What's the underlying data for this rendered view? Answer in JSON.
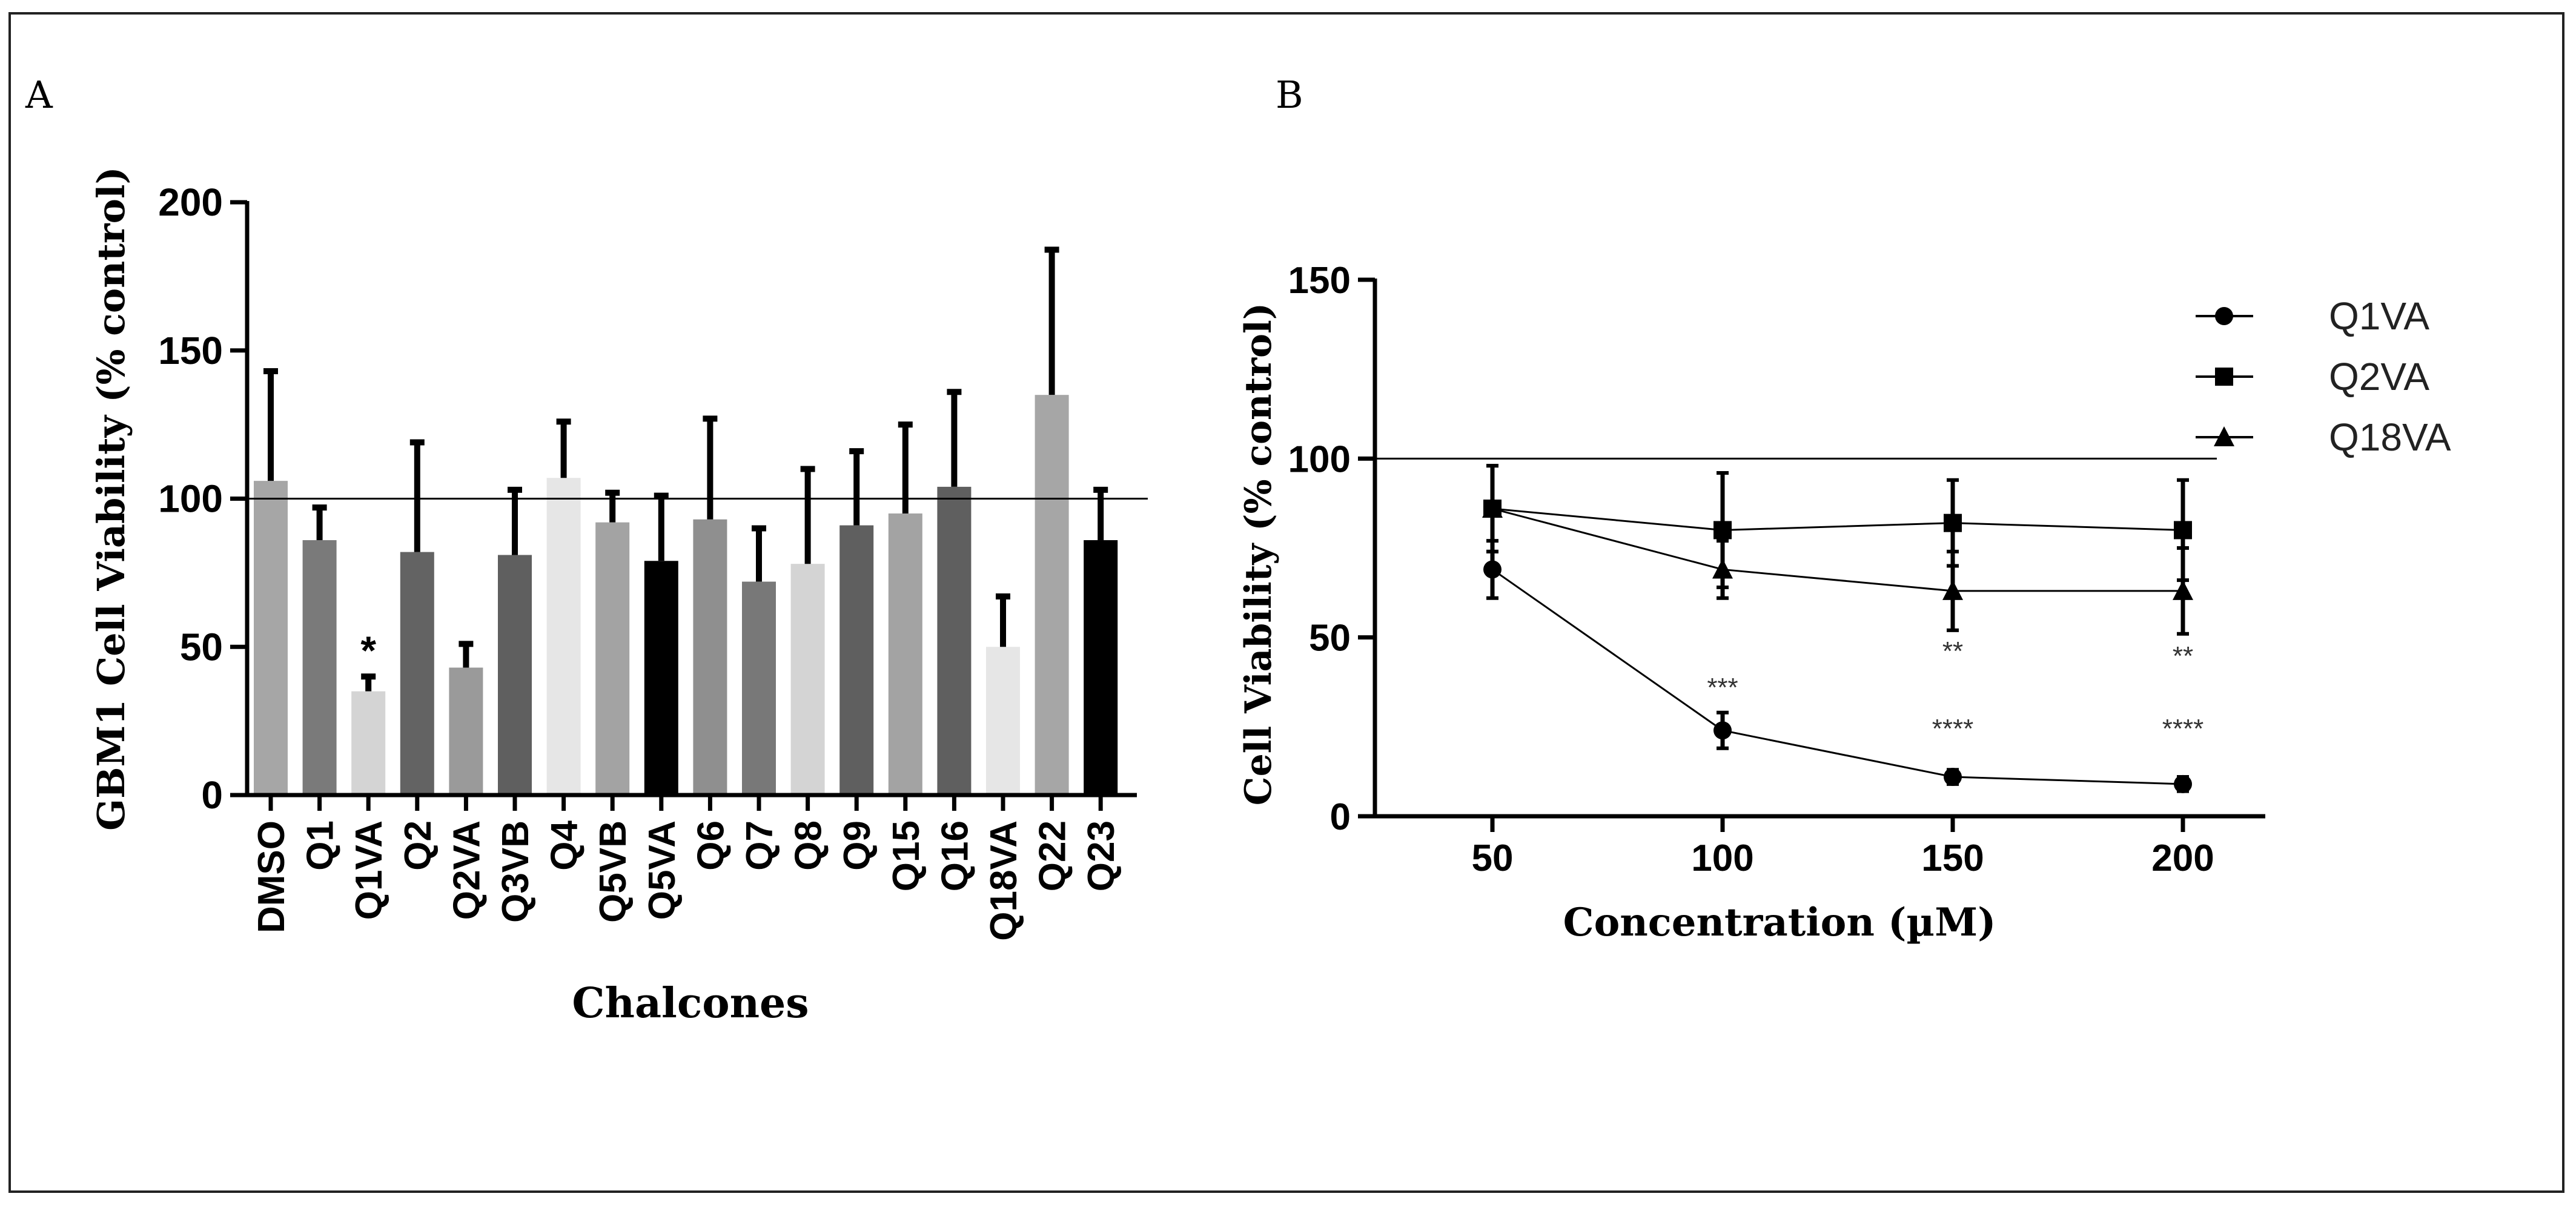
{
  "panels": {
    "a_label": "A",
    "b_label": "B"
  },
  "colors": {
    "axis": "#000000",
    "error_bar": "#000000",
    "reference_line": "#000000"
  },
  "chart_data": [
    {
      "type": "bar",
      "panel": "A",
      "title": "",
      "xlabel": "Chalcones",
      "ylabel": "GBM1 Cell Viability (% control)",
      "ylim": [
        0,
        200
      ],
      "yticks": [
        0,
        50,
        100,
        150,
        200
      ],
      "reference_line": 100,
      "categories": [
        "DMSO",
        "Q1",
        "Q1VA",
        "Q2",
        "Q2VA",
        "Q3VB",
        "Q4",
        "Q5VB",
        "Q5VA",
        "Q6",
        "Q7",
        "Q8",
        "Q9",
        "Q15",
        "Q16",
        "Q18VA",
        "Q22",
        "Q23"
      ],
      "values": [
        106,
        86,
        35,
        82,
        43,
        81,
        107,
        92,
        79,
        93,
        72,
        78,
        91,
        95,
        104,
        50,
        135,
        86
      ],
      "errors": [
        37,
        11,
        5,
        37,
        8,
        22,
        19,
        10,
        22,
        34,
        18,
        32,
        25,
        30,
        32,
        17,
        49,
        17
      ],
      "bar_colors": [
        "#a6a6a6",
        "#7a7a7a",
        "#d4d4d4",
        "#636363",
        "#9a9a9a",
        "#5f5f5f",
        "#e6e6e6",
        "#a3a3a3",
        "#000000",
        "#8f8f8f",
        "#787878",
        "#d4d4d4",
        "#5f5f5f",
        "#a3a3a3",
        "#5f5f5f",
        "#e6e6e6",
        "#a6a6a6",
        "#000000"
      ],
      "annotations": [
        {
          "category": "Q1VA",
          "text": "*"
        }
      ]
    },
    {
      "type": "line",
      "panel": "B",
      "title": "",
      "xlabel": "Concentration (µM)",
      "ylabel": "Cell Viability (% control)",
      "x": [
        50,
        100,
        150,
        200
      ],
      "xlim": [
        25,
        215
      ],
      "xticks": [
        50,
        100,
        150,
        200
      ],
      "ylim": [
        0,
        150
      ],
      "yticks": [
        0,
        50,
        100,
        150
      ],
      "reference_line": 100,
      "legend_position": "right",
      "series": [
        {
          "name": "Q1VA",
          "marker": "circle",
          "values": [
            69,
            24,
            11,
            9
          ],
          "errors": [
            8,
            5,
            2,
            2
          ],
          "annotations": [
            "",
            "***",
            "****",
            "****"
          ]
        },
        {
          "name": "Q2VA",
          "marker": "square",
          "values": [
            86,
            80,
            82,
            80
          ],
          "errors": [
            12,
            16,
            12,
            14
          ],
          "annotations": [
            "",
            "",
            "",
            ""
          ]
        },
        {
          "name": "Q18VA",
          "marker": "triangle",
          "values": [
            86,
            69,
            63,
            63
          ],
          "errors": [
            12,
            8,
            11,
            12
          ],
          "annotations": [
            "",
            "",
            "**",
            "**"
          ]
        }
      ]
    }
  ]
}
